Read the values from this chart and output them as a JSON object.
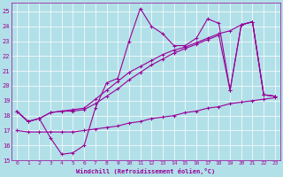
{
  "xlabel": "Windchill (Refroidissement éolien,°C)",
  "background_color": "#b2e0e8",
  "line_color": "#990099",
  "grid_color": "#ffffff",
  "xlim": [
    -0.5,
    23.5
  ],
  "ylim": [
    15,
    25.6
  ],
  "xticks": [
    0,
    1,
    2,
    3,
    4,
    5,
    6,
    7,
    8,
    9,
    10,
    11,
    12,
    13,
    14,
    15,
    16,
    17,
    18,
    19,
    20,
    21,
    22,
    23
  ],
  "yticks": [
    15,
    16,
    17,
    18,
    19,
    20,
    21,
    22,
    23,
    24,
    25
  ],
  "lines": [
    {
      "x": [
        0,
        1,
        2,
        3,
        4,
        5,
        6,
        7,
        8,
        9,
        10,
        11,
        12,
        13,
        14,
        15,
        16,
        17,
        18,
        19,
        20,
        21,
        22,
        23
      ],
      "y": [
        18.3,
        17.6,
        17.8,
        16.5,
        15.4,
        15.5,
        16.0,
        18.5,
        20.2,
        20.5,
        23.0,
        25.2,
        24.0,
        23.5,
        22.7,
        22.7,
        23.2,
        24.5,
        24.2,
        19.7,
        24.1,
        24.3,
        19.4,
        19.3
      ]
    },
    {
      "x": [
        0,
        1,
        2,
        3,
        4,
        5,
        6,
        7,
        8,
        9,
        10,
        11,
        12,
        13,
        14,
        15,
        16,
        17,
        18,
        19,
        20,
        21,
        22,
        23
      ],
      "y": [
        18.3,
        17.6,
        17.8,
        18.2,
        18.3,
        18.4,
        18.5,
        19.1,
        19.7,
        20.3,
        20.9,
        21.3,
        21.7,
        22.1,
        22.4,
        22.6,
        22.9,
        23.2,
        23.5,
        23.7,
        24.1,
        24.3,
        19.4,
        19.3
      ]
    },
    {
      "x": [
        0,
        1,
        2,
        3,
        4,
        5,
        6,
        7,
        8,
        9,
        10,
        11,
        12,
        13,
        14,
        15,
        16,
        17,
        18,
        19,
        20,
        21,
        22,
        23
      ],
      "y": [
        18.3,
        17.6,
        17.8,
        18.2,
        18.3,
        18.3,
        18.4,
        18.8,
        19.3,
        19.8,
        20.4,
        20.9,
        21.4,
        21.8,
        22.2,
        22.5,
        22.8,
        23.1,
        23.4,
        19.7,
        24.1,
        24.3,
        19.4,
        19.3
      ]
    },
    {
      "x": [
        0,
        1,
        2,
        3,
        4,
        5,
        6,
        7,
        8,
        9,
        10,
        11,
        12,
        13,
        14,
        15,
        16,
        17,
        18,
        19,
        20,
        21,
        22,
        23
      ],
      "y": [
        17.0,
        16.9,
        16.9,
        16.9,
        16.9,
        16.9,
        17.0,
        17.1,
        17.2,
        17.3,
        17.5,
        17.6,
        17.8,
        17.9,
        18.0,
        18.2,
        18.3,
        18.5,
        18.6,
        18.8,
        18.9,
        19.0,
        19.1,
        19.2
      ]
    }
  ],
  "marker": "+",
  "markersize": 3,
  "linewidth": 0.8
}
